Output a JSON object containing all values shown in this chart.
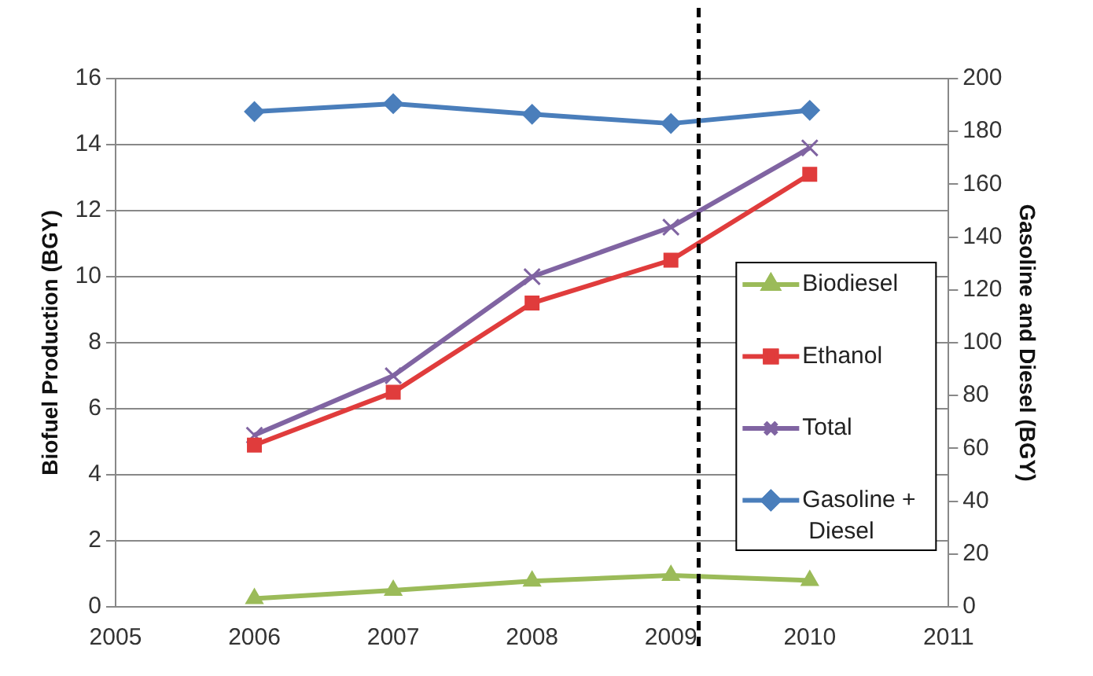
{
  "chart_data": {
    "type": "line",
    "xlabel": null,
    "ylabel": "Biofuel Production (BGY)",
    "y2label": "Gasoline and Diesel (BGY)",
    "x": [
      2006,
      2007,
      2008,
      2009,
      2010
    ],
    "series": [
      {
        "name": "Biodiesel",
        "color": "#9bbb59",
        "marker": "triangle",
        "values": [
          0.25,
          0.5,
          0.78,
          0.95,
          0.8
        ]
      },
      {
        "name": "Ethanol",
        "color": "#e03c3c",
        "marker": "square",
        "values": [
          4.9,
          6.5,
          9.2,
          10.5,
          13.1
        ]
      },
      {
        "name": "Total",
        "color": "#8064a2",
        "marker": "cross",
        "values": [
          5.2,
          7.0,
          10.0,
          11.5,
          13.9
        ]
      },
      {
        "name": "Gasoline + Diesel",
        "color": "#4a7ebb",
        "marker": "diamond",
        "axis": "y2",
        "values": [
          187.5,
          190.5,
          186.5,
          183,
          188
        ]
      }
    ],
    "xlim": [
      2005,
      2011
    ],
    "xticks": [
      2005,
      2006,
      2007,
      2008,
      2009,
      2010,
      2011
    ],
    "ylim": [
      0,
      16
    ],
    "yticks": [
      0,
      2,
      4,
      6,
      8,
      10,
      12,
      14,
      16
    ],
    "y2lim": [
      0,
      200
    ],
    "y2ticks": [
      0,
      20,
      40,
      60,
      80,
      100,
      120,
      140,
      160,
      180,
      200
    ],
    "ref_lines": [
      {
        "axis": "x",
        "value": 2009.2,
        "color": "#000000",
        "line_style": "dashed"
      }
    ],
    "grid": "y",
    "legend": "right",
    "line_style": "solid"
  }
}
